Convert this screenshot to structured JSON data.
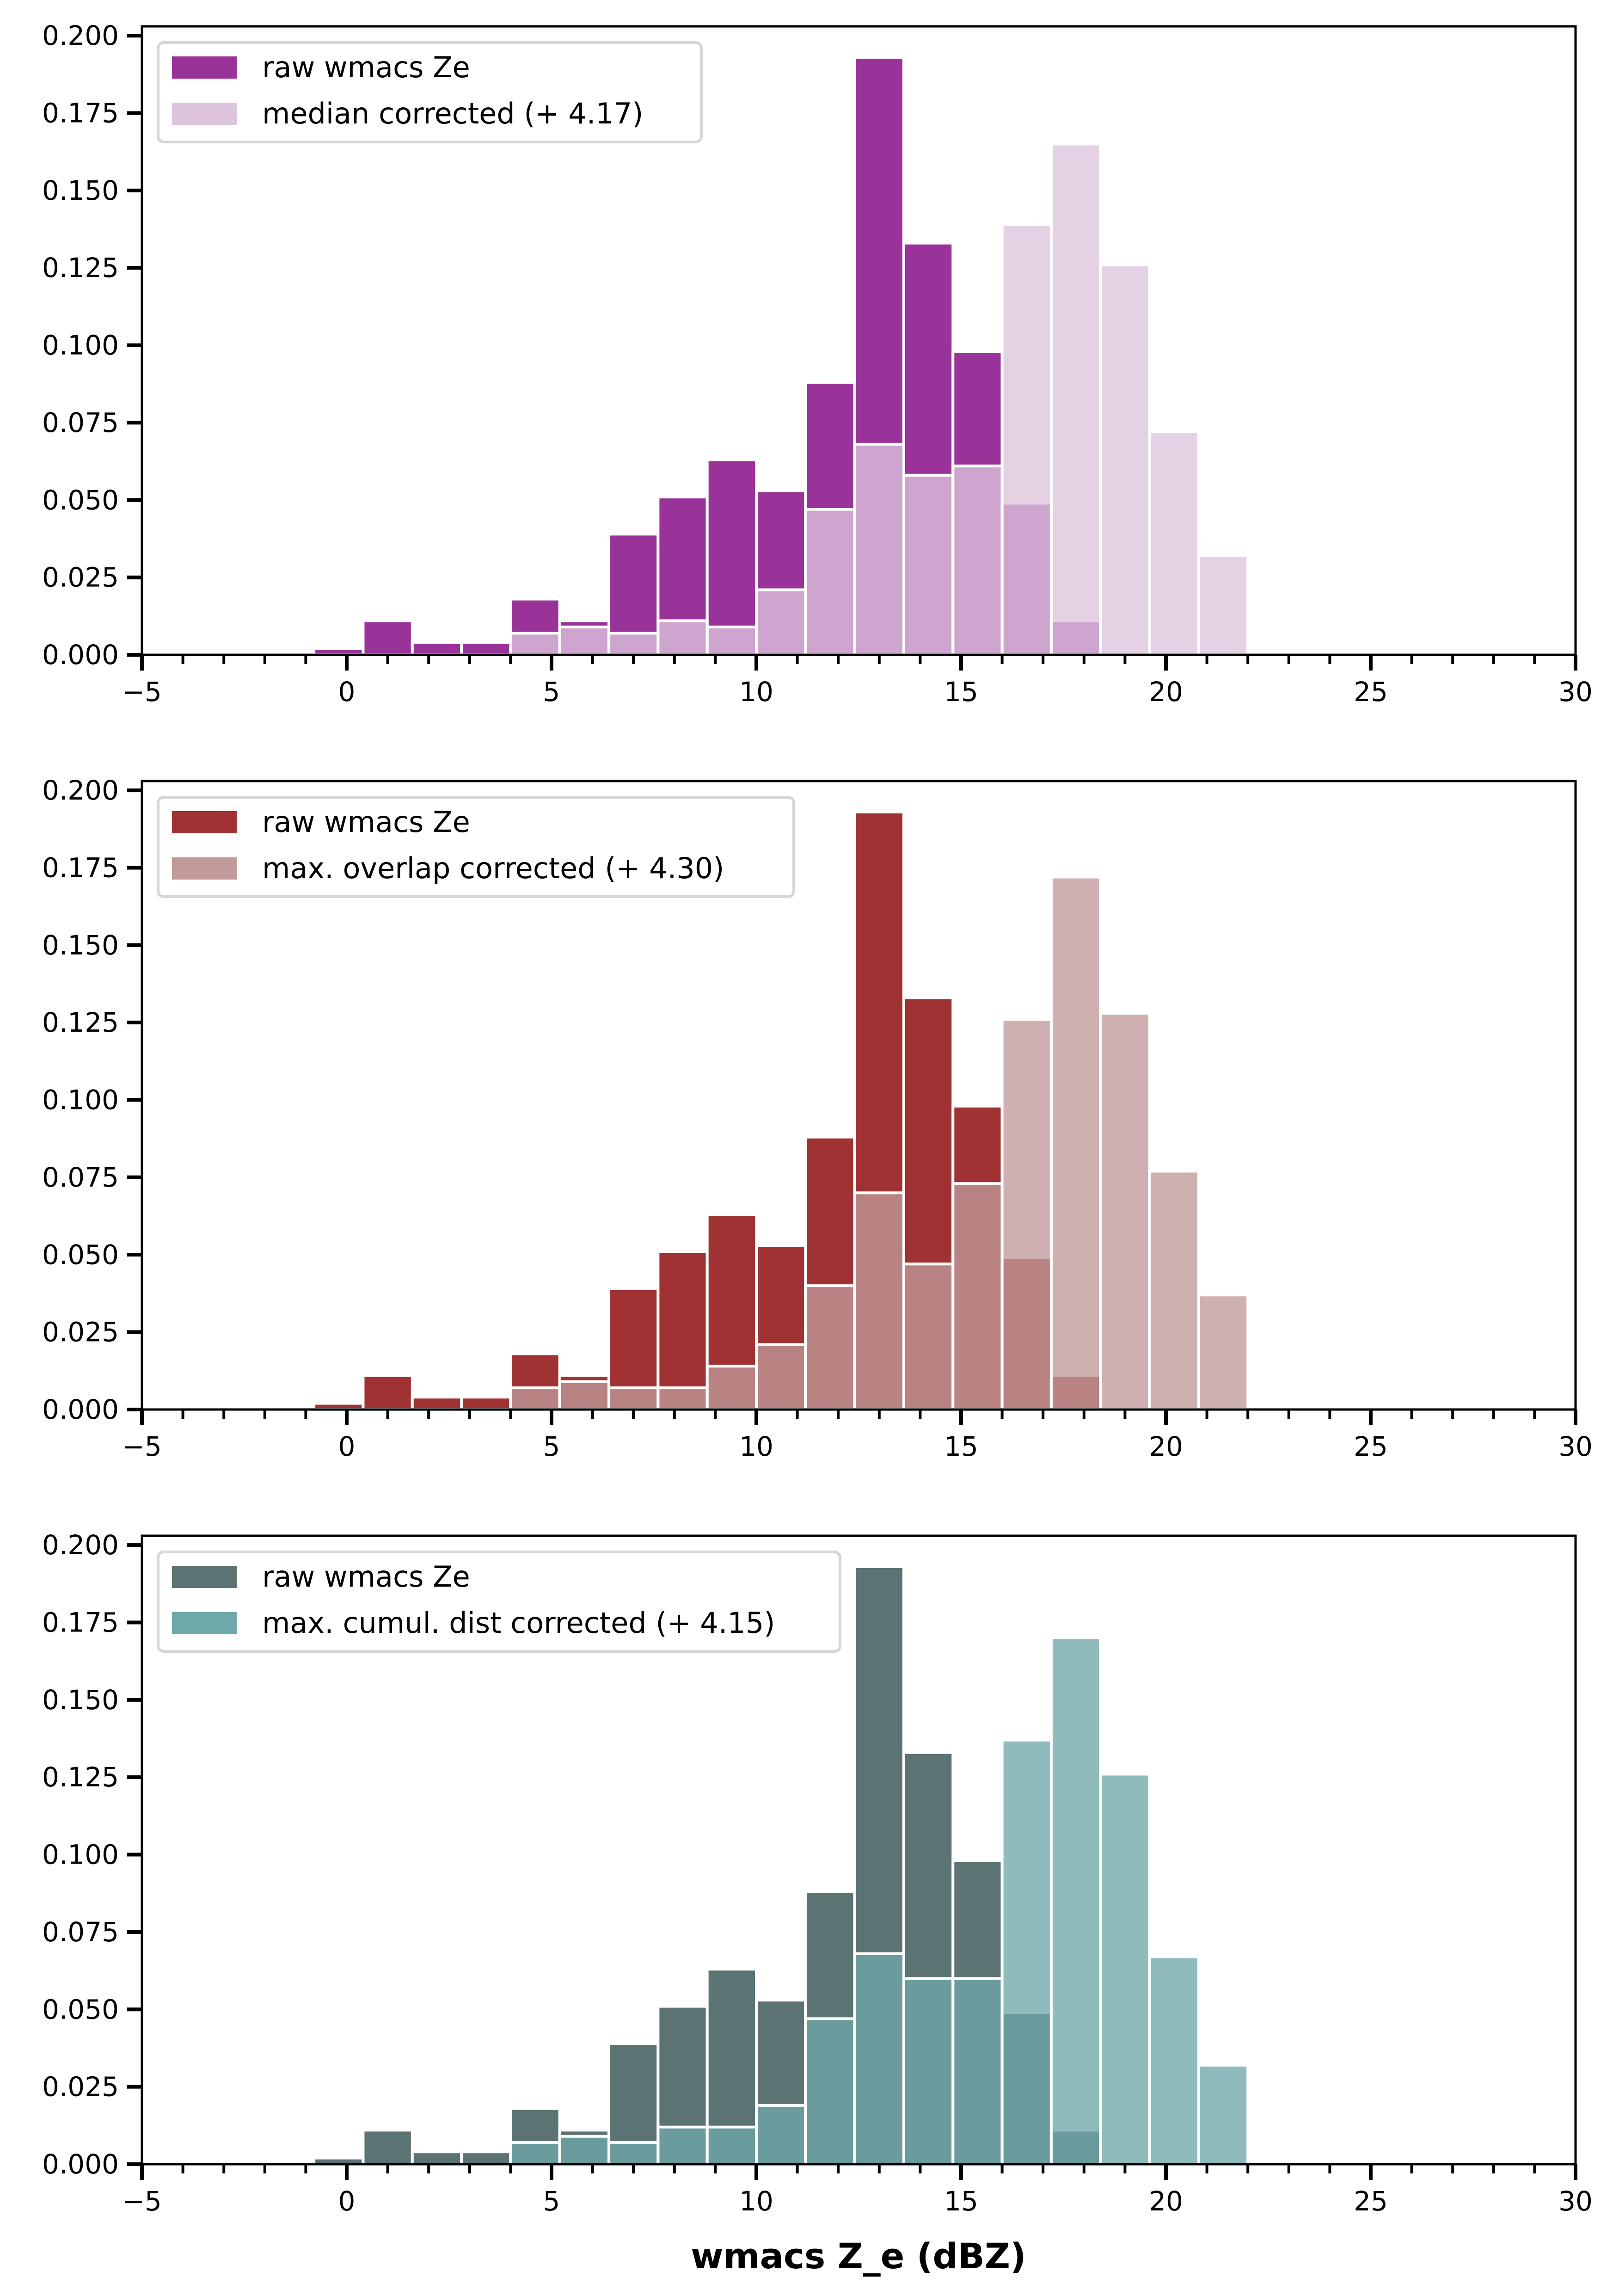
{
  "chart_data": [
    {
      "type": "bar",
      "subtype": "overlaid-histogram",
      "title": "",
      "xlabel": "",
      "ylabel": "",
      "xlim": [
        -5,
        30
      ],
      "ylim": [
        0,
        0.203
      ],
      "xticks": [
        "−5",
        "0",
        "5",
        "10",
        "15",
        "20",
        "25",
        "30"
      ],
      "xtick_values": [
        -5,
        0,
        5,
        10,
        15,
        20,
        25,
        30
      ],
      "yticks": [
        "0.000",
        "0.025",
        "0.050",
        "0.075",
        "0.100",
        "0.125",
        "0.150",
        "0.175",
        "0.200"
      ],
      "ytick_values": [
        0,
        0.025,
        0.05,
        0.075,
        0.1,
        0.125,
        0.15,
        0.175,
        0.2
      ],
      "legend_position": "top-left",
      "bin_edges": [
        -0.8,
        0.4,
        1.6,
        2.8,
        4.0,
        5.2,
        6.4,
        7.6,
        8.8,
        10.0,
        11.2,
        12.4,
        13.6,
        14.8,
        16.0,
        17.2,
        18.4,
        19.6,
        20.8,
        22.0
      ],
      "series": [
        {
          "name": "raw wmacs Ze",
          "color": "#993399",
          "values": [
            0.002,
            0.011,
            0.004,
            0.004,
            0.018,
            0.011,
            0.039,
            0.051,
            0.063,
            0.053,
            0.088,
            0.193,
            0.133,
            0.098,
            0.049,
            0.011,
            0,
            0,
            0
          ]
        },
        {
          "name": "median corrected (+ 4.17)",
          "color": "#dcc5dc",
          "values": [
            0,
            0,
            0,
            0,
            0.007,
            0.009,
            0.007,
            0.011,
            0.009,
            0.021,
            0.047,
            0.068,
            0.058,
            0.061,
            0.139,
            0.165,
            0.126,
            0.072,
            0.032
          ]
        }
      ],
      "overlap_color": "#d2afd2"
    },
    {
      "type": "bar",
      "subtype": "overlaid-histogram",
      "title": "",
      "xlabel": "",
      "ylabel": "",
      "xlim": [
        -5,
        30
      ],
      "ylim": [
        0,
        0.203
      ],
      "xticks": [
        "−5",
        "0",
        "5",
        "10",
        "15",
        "20",
        "25",
        "30"
      ],
      "xtick_values": [
        -5,
        0,
        5,
        10,
        15,
        20,
        25,
        30
      ],
      "yticks": [
        "0.000",
        "0.025",
        "0.050",
        "0.075",
        "0.100",
        "0.125",
        "0.150",
        "0.175",
        "0.200"
      ],
      "ytick_values": [
        0,
        0.025,
        0.05,
        0.075,
        0.1,
        0.125,
        0.15,
        0.175,
        0.2
      ],
      "legend_position": "top-left",
      "bin_edges": [
        -0.8,
        0.4,
        1.6,
        2.8,
        4.0,
        5.2,
        6.4,
        7.6,
        8.8,
        10.0,
        11.2,
        12.4,
        13.6,
        14.8,
        16.0,
        17.2,
        18.4,
        19.6,
        20.8,
        22.0
      ],
      "series": [
        {
          "name": "raw wmacs Ze",
          "color": "#a03233",
          "values": [
            0.002,
            0.011,
            0.004,
            0.004,
            0.018,
            0.011,
            0.039,
            0.051,
            0.063,
            0.053,
            0.088,
            0.193,
            0.133,
            0.098,
            0.049,
            0.011,
            0,
            0,
            0
          ]
        },
        {
          "name": "max. overlap corrected (+ 4.30)",
          "color": "#c29a9a",
          "values": [
            0,
            0,
            0,
            0,
            0.007,
            0.009,
            0.007,
            0.007,
            0.014,
            0.021,
            0.04,
            0.07,
            0.047,
            0.073,
            0.126,
            0.172,
            0.128,
            0.077,
            0.037
          ]
        }
      ],
      "overlap_color": "#b98686"
    },
    {
      "type": "bar",
      "subtype": "overlaid-histogram",
      "title": "",
      "xlabel": "wmacs Z_e (dBZ)",
      "ylabel": "",
      "xlim": [
        -5,
        30
      ],
      "ylim": [
        0,
        0.203
      ],
      "xticks": [
        "−5",
        "0",
        "5",
        "10",
        "15",
        "20",
        "25",
        "30"
      ],
      "xtick_values": [
        -5,
        0,
        5,
        10,
        15,
        20,
        25,
        30
      ],
      "yticks": [
        "0.000",
        "0.025",
        "0.050",
        "0.075",
        "0.100",
        "0.125",
        "0.150",
        "0.175",
        "0.200"
      ],
      "ytick_values": [
        0,
        0.025,
        0.05,
        0.075,
        0.1,
        0.125,
        0.15,
        0.175,
        0.2
      ],
      "legend_position": "top-left",
      "bin_edges": [
        -0.8,
        0.4,
        1.6,
        2.8,
        4.0,
        5.2,
        6.4,
        7.6,
        8.8,
        10.0,
        11.2,
        12.4,
        13.6,
        14.8,
        16.0,
        17.2,
        18.4,
        19.6,
        20.8,
        22.0
      ],
      "series": [
        {
          "name": "raw wmacs Ze",
          "color": "#5b7372",
          "values": [
            0.002,
            0.011,
            0.004,
            0.004,
            0.018,
            0.011,
            0.039,
            0.051,
            0.063,
            0.053,
            0.088,
            0.193,
            0.133,
            0.098,
            0.049,
            0.011,
            0,
            0,
            0
          ]
        },
        {
          "name": "max. cumul. dist corrected (+ 4.15)",
          "color": "#6fa8a9",
          "values": [
            0,
            0,
            0,
            0,
            0.007,
            0.009,
            0.007,
            0.012,
            0.012,
            0.019,
            0.047,
            0.068,
            0.06,
            0.06,
            0.137,
            0.17,
            0.126,
            0.067,
            0.032
          ]
        }
      ],
      "overlap_color": "#5e9a9b"
    }
  ]
}
